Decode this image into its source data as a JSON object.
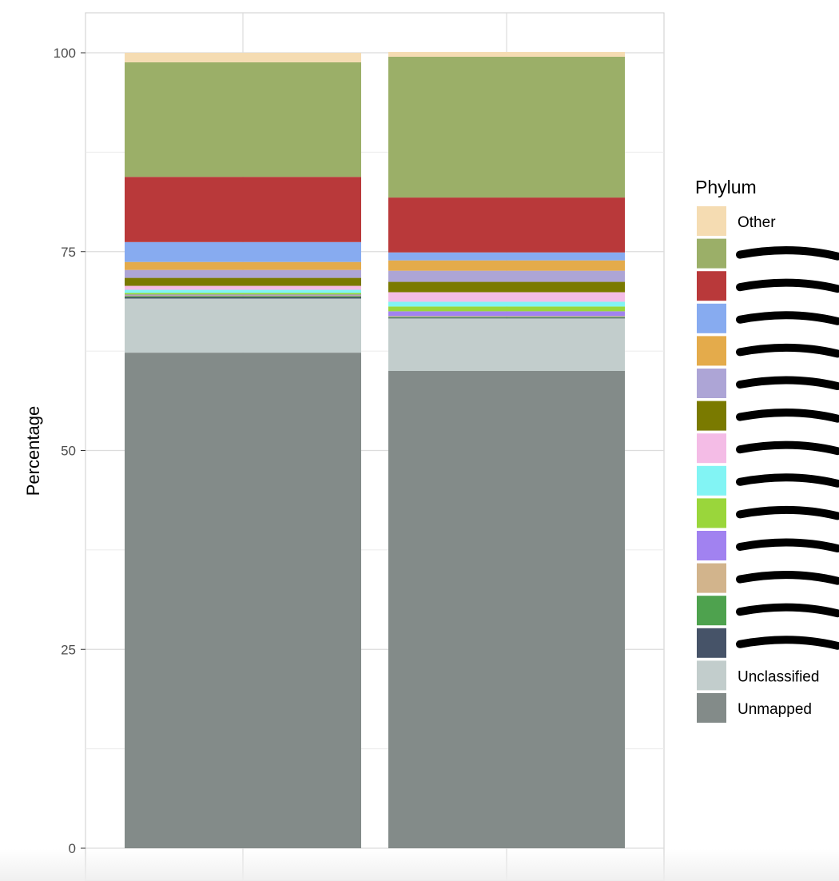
{
  "chart_data": {
    "type": "bar",
    "stacked": true,
    "title": "",
    "xlabel": "",
    "ylabel": "Percentage",
    "ylim": [
      0,
      100
    ],
    "yticks": [
      0,
      25,
      50,
      75,
      100
    ],
    "grid": true,
    "legend": {
      "title": "Phylum",
      "placement": "right"
    },
    "categories": [
      "",
      ""
    ],
    "series": [
      {
        "name": "Unmapped",
        "color": "#838B89",
        "values": [
          62.3,
          60.0
        ]
      },
      {
        "name": "Unclassified",
        "color": "#C2CDCC",
        "values": [
          6.8,
          6.6
        ]
      },
      {
        "name": "",
        "color": "#465368",
        "values": [
          0.2,
          0.1
        ]
      },
      {
        "name": "",
        "color": "#4EA24E",
        "values": [
          0.1,
          0.1
        ]
      },
      {
        "name": "",
        "color": "#D2B48C",
        "values": [
          0.1,
          0.1
        ]
      },
      {
        "name": "",
        "color": "#A182F0",
        "values": [
          0.1,
          0.6
        ]
      },
      {
        "name": "",
        "color": "#9AD63B",
        "values": [
          0.2,
          0.6
        ]
      },
      {
        "name": "",
        "color": "#82F4F4",
        "values": [
          0.4,
          0.6
        ]
      },
      {
        "name": "",
        "color": "#F4BCE6",
        "values": [
          0.5,
          1.2
        ]
      },
      {
        "name": "",
        "color": "#7A7A00",
        "values": [
          1.0,
          1.3
        ]
      },
      {
        "name": "",
        "color": "#ADA5D6",
        "values": [
          1.0,
          1.4
        ]
      },
      {
        "name": "",
        "color": "#E4AB4B",
        "values": [
          1.0,
          1.3
        ]
      },
      {
        "name": "",
        "color": "#87ABF0",
        "values": [
          2.5,
          1.0
        ]
      },
      {
        "name": "",
        "color": "#B9393A",
        "values": [
          8.2,
          6.9
        ]
      },
      {
        "name": "",
        "color": "#9BAF68",
        "values": [
          14.4,
          17.7
        ]
      },
      {
        "name": "Other",
        "color": "#F5DCB2",
        "values": [
          1.2,
          0.6
        ]
      }
    ],
    "legend_order": [
      "Other",
      "",
      "",
      "",
      "",
      "",
      "",
      "",
      "",
      "",
      "",
      "",
      "",
      "",
      "Unclassified",
      "Unmapped"
    ]
  }
}
